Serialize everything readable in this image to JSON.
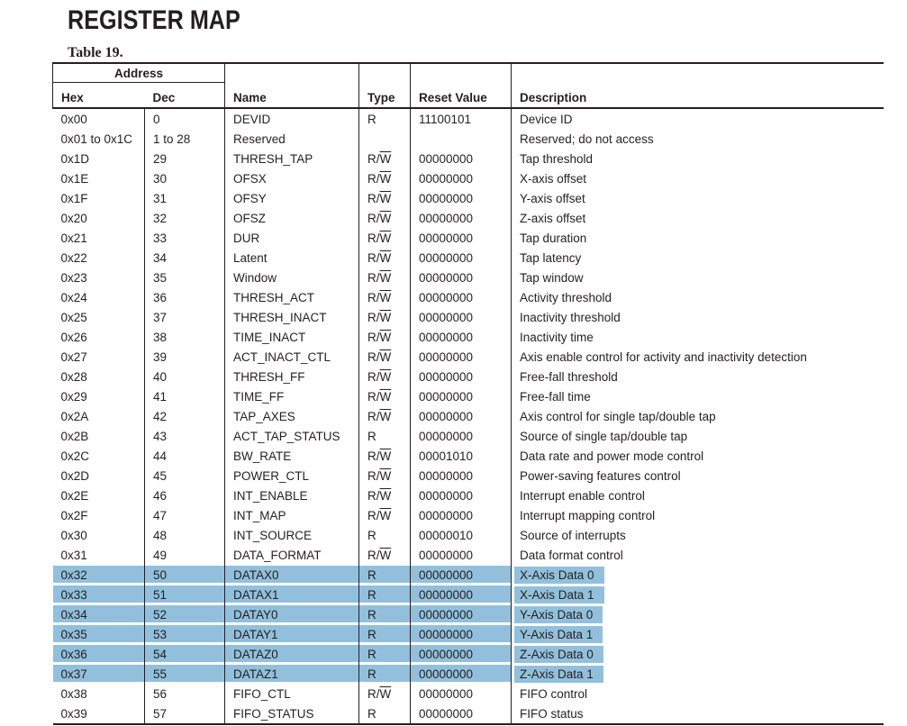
{
  "page": {
    "title": "REGISTER MAP",
    "caption": "Table 19."
  },
  "colors": {
    "highlight": "#92c0dc",
    "text": "#231f20",
    "border": "#231f20"
  },
  "table": {
    "headers": {
      "address_group": "Address",
      "hex": "Hex",
      "dec": "Dec",
      "name": "Name",
      "type": "Type",
      "reset_value": "Reset Value",
      "description": "Description"
    },
    "rows": [
      {
        "hex": "0x00",
        "dec": "0",
        "name": "DEVID",
        "type": "R",
        "reset": "11100101",
        "description": "Device ID",
        "highlighted": false
      },
      {
        "hex": "0x01 to 0x1C",
        "dec": "1 to 28",
        "name": "Reserved",
        "type": "",
        "reset": "",
        "description": "Reserved; do not access",
        "highlighted": false
      },
      {
        "hex": "0x1D",
        "dec": "29",
        "name": "THRESH_TAP",
        "type": "R/W",
        "reset": "00000000",
        "description": "Tap threshold",
        "highlighted": false
      },
      {
        "hex": "0x1E",
        "dec": "30",
        "name": "OFSX",
        "type": "R/W",
        "reset": "00000000",
        "description": "X-axis offset",
        "highlighted": false
      },
      {
        "hex": "0x1F",
        "dec": "31",
        "name": "OFSY",
        "type": "R/W",
        "reset": "00000000",
        "description": "Y-axis offset",
        "highlighted": false
      },
      {
        "hex": "0x20",
        "dec": "32",
        "name": "OFSZ",
        "type": "R/W",
        "reset": "00000000",
        "description": "Z-axis offset",
        "highlighted": false
      },
      {
        "hex": "0x21",
        "dec": "33",
        "name": "DUR",
        "type": "R/W",
        "reset": "00000000",
        "description": "Tap duration",
        "highlighted": false
      },
      {
        "hex": "0x22",
        "dec": "34",
        "name": "Latent",
        "type": "R/W",
        "reset": "00000000",
        "description": "Tap latency",
        "highlighted": false
      },
      {
        "hex": "0x23",
        "dec": "35",
        "name": "Window",
        "type": "R/W",
        "reset": "00000000",
        "description": "Tap window",
        "highlighted": false
      },
      {
        "hex": "0x24",
        "dec": "36",
        "name": "THRESH_ACT",
        "type": "R/W",
        "reset": "00000000",
        "description": "Activity threshold",
        "highlighted": false
      },
      {
        "hex": "0x25",
        "dec": "37",
        "name": "THRESH_INACT",
        "type": "R/W",
        "reset": "00000000",
        "description": "Inactivity threshold",
        "highlighted": false
      },
      {
        "hex": "0x26",
        "dec": "38",
        "name": "TIME_INACT",
        "type": "R/W",
        "reset": "00000000",
        "description": "Inactivity time",
        "highlighted": false
      },
      {
        "hex": "0x27",
        "dec": "39",
        "name": "ACT_INACT_CTL",
        "type": "R/W",
        "reset": "00000000",
        "description": "Axis enable control for activity and inactivity detection",
        "highlighted": false
      },
      {
        "hex": "0x28",
        "dec": "40",
        "name": "THRESH_FF",
        "type": "R/W",
        "reset": "00000000",
        "description": "Free-fall threshold",
        "highlighted": false
      },
      {
        "hex": "0x29",
        "dec": "41",
        "name": "TIME_FF",
        "type": "R/W",
        "reset": "00000000",
        "description": "Free-fall time",
        "highlighted": false
      },
      {
        "hex": "0x2A",
        "dec": "42",
        "name": "TAP_AXES",
        "type": "R/W",
        "reset": "00000000",
        "description": "Axis control for single tap/double tap",
        "highlighted": false
      },
      {
        "hex": "0x2B",
        "dec": "43",
        "name": "ACT_TAP_STATUS",
        "type": "R",
        "reset": "00000000",
        "description": "Source of single tap/double tap",
        "highlighted": false
      },
      {
        "hex": "0x2C",
        "dec": "44",
        "name": "BW_RATE",
        "type": "R/W",
        "reset": "00001010",
        "description": "Data rate and power mode control",
        "highlighted": false
      },
      {
        "hex": "0x2D",
        "dec": "45",
        "name": "POWER_CTL",
        "type": "R/W",
        "reset": "00000000",
        "description": "Power-saving features control",
        "highlighted": false
      },
      {
        "hex": "0x2E",
        "dec": "46",
        "name": "INT_ENABLE",
        "type": "R/W",
        "reset": "00000000",
        "description": "Interrupt enable control",
        "highlighted": false
      },
      {
        "hex": "0x2F",
        "dec": "47",
        "name": "INT_MAP",
        "type": "R/W",
        "reset": "00000000",
        "description": "Interrupt mapping control",
        "highlighted": false
      },
      {
        "hex": "0x30",
        "dec": "48",
        "name": "INT_SOURCE",
        "type": "R",
        "reset": "00000010",
        "description": "Source of interrupts",
        "highlighted": false
      },
      {
        "hex": "0x31",
        "dec": "49",
        "name": "DATA_FORMAT",
        "type": "R/W",
        "reset": "00000000",
        "description": "Data format control",
        "highlighted": false
      },
      {
        "hex": "0x32",
        "dec": "50",
        "name": "DATAX0",
        "type": "R",
        "reset": "00000000",
        "description": "X-Axis Data 0",
        "highlighted": true
      },
      {
        "hex": "0x33",
        "dec": "51",
        "name": "DATAX1",
        "type": "R",
        "reset": "00000000",
        "description": "X-Axis Data 1",
        "highlighted": true
      },
      {
        "hex": "0x34",
        "dec": "52",
        "name": "DATAY0",
        "type": "R",
        "reset": "00000000",
        "description": "Y-Axis Data 0",
        "highlighted": true
      },
      {
        "hex": "0x35",
        "dec": "53",
        "name": "DATAY1",
        "type": "R",
        "reset": "00000000",
        "description": "Y-Axis Data 1",
        "highlighted": true
      },
      {
        "hex": "0x36",
        "dec": "54",
        "name": "DATAZ0",
        "type": "R",
        "reset": "00000000",
        "description": "Z-Axis Data 0",
        "highlighted": true
      },
      {
        "hex": "0x37",
        "dec": "55",
        "name": "DATAZ1",
        "type": "R",
        "reset": "00000000",
        "description": "Z-Axis Data 1",
        "highlighted": true
      },
      {
        "hex": "0x38",
        "dec": "56",
        "name": "FIFO_CTL",
        "type": "R/W",
        "reset": "00000000",
        "description": "FIFO control",
        "highlighted": false
      },
      {
        "hex": "0x39",
        "dec": "57",
        "name": "FIFO_STATUS",
        "type": "R",
        "reset": "00000000",
        "description": "FIFO status",
        "highlighted": false
      }
    ]
  }
}
